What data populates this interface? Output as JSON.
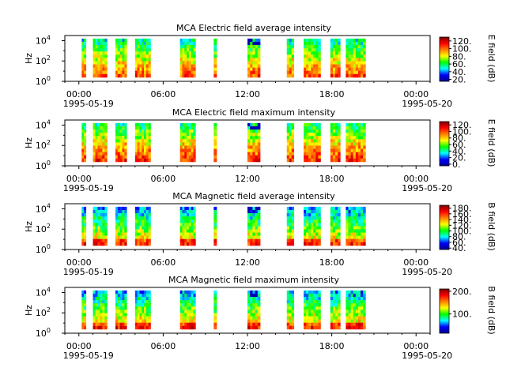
{
  "colors": {
    "colormap": [
      "#00008f",
      "#0000ff",
      "#00ffff",
      "#00ff00",
      "#ffff00",
      "#ff8000",
      "#ff0000",
      "#800000"
    ],
    "axis": "#000000",
    "background": "#ffffff"
  },
  "chart_data": [
    {
      "type": "heatmap",
      "title": "MCA  Electric field average intensity",
      "ylabel": "Hz",
      "ylim_exp": [
        0,
        4.5
      ],
      "yticks": [
        {
          "exp": 0,
          "base": "10",
          "sup": "0"
        },
        {
          "exp": 2,
          "base": "10",
          "sup": "2"
        },
        {
          "exp": 4,
          "base": "10",
          "sup": "4"
        }
      ],
      "xticks": [
        {
          "t": 0,
          "label": "00:00"
        },
        {
          "t": 6,
          "label": "06:00"
        },
        {
          "t": 12,
          "label": "12:00"
        },
        {
          "t": 18,
          "label": "18:00"
        },
        {
          "t": 24,
          "label": "00:00"
        }
      ],
      "xdates": {
        "start": "1995-05-19",
        "end": "1995-05-20"
      },
      "colorbar_label": "E field (dB)",
      "colorbar_range": [
        15,
        130
      ],
      "colorbar_ticks": [
        "20.",
        "40.",
        "60.",
        "80.",
        "100.",
        "120."
      ],
      "colorbar_tick_values": [
        20,
        40,
        60,
        80,
        100,
        120
      ],
      "base_level": 0.5
    },
    {
      "type": "heatmap",
      "title": "MCA  Electric field maximum intensity",
      "ylabel": "Hz",
      "ylim_exp": [
        0,
        4.5
      ],
      "yticks": [
        {
          "exp": 0,
          "base": "10",
          "sup": "0"
        },
        {
          "exp": 2,
          "base": "10",
          "sup": "2"
        },
        {
          "exp": 4,
          "base": "10",
          "sup": "4"
        }
      ],
      "xticks": [
        {
          "t": 0,
          "label": "00:00"
        },
        {
          "t": 6,
          "label": "06:00"
        },
        {
          "t": 12,
          "label": "12:00"
        },
        {
          "t": 18,
          "label": "18:00"
        },
        {
          "t": 24,
          "label": "00:00"
        }
      ],
      "xdates": {
        "start": "1995-05-19",
        "end": "1995-05-20"
      },
      "colorbar_label": "E field (dB)",
      "colorbar_range": [
        -5,
        130
      ],
      "colorbar_ticks": [
        "0.",
        "20.",
        "40.",
        "60.",
        "80.",
        "100.",
        "120."
      ],
      "colorbar_tick_values": [
        0,
        20,
        40,
        60,
        80,
        100,
        120
      ],
      "base_level": 0.55
    },
    {
      "type": "heatmap",
      "title": "MCA  Magnetic field average intensity",
      "ylabel": "Hz",
      "ylim_exp": [
        0,
        4.5
      ],
      "yticks": [
        {
          "exp": 0,
          "base": "10",
          "sup": "0"
        },
        {
          "exp": 2,
          "base": "10",
          "sup": "2"
        },
        {
          "exp": 4,
          "base": "10",
          "sup": "4"
        }
      ],
      "xticks": [
        {
          "t": 0,
          "label": "00:00"
        },
        {
          "t": 6,
          "label": "06:00"
        },
        {
          "t": 12,
          "label": "12:00"
        },
        {
          "t": 18,
          "label": "18:00"
        },
        {
          "t": 24,
          "label": "00:00"
        }
      ],
      "xdates": {
        "start": "1995-05-19",
        "end": "1995-05-20"
      },
      "colorbar_label": "B field (dB)",
      "colorbar_range": [
        35,
        190
      ],
      "colorbar_ticks": [
        "40.",
        "60.",
        "80.",
        "100.",
        "120.",
        "140.",
        "160.",
        "180."
      ],
      "colorbar_tick_values": [
        40,
        60,
        80,
        100,
        120,
        140,
        160,
        180
      ],
      "base_level": 0.4
    },
    {
      "type": "heatmap",
      "title": "MCA  Magnetic field maximum intensity",
      "ylabel": "Hz",
      "ylim_exp": [
        0,
        4.5
      ],
      "yticks": [
        {
          "exp": 0,
          "base": "10",
          "sup": "0"
        },
        {
          "exp": 2,
          "base": "10",
          "sup": "2"
        },
        {
          "exp": 4,
          "base": "10",
          "sup": "4"
        }
      ],
      "xticks": [
        {
          "t": 0,
          "label": "00:00"
        },
        {
          "t": 6,
          "label": "06:00"
        },
        {
          "t": 12,
          "label": "12:00"
        },
        {
          "t": 18,
          "label": "18:00"
        },
        {
          "t": 24,
          "label": "00:00"
        }
      ],
      "xdates": {
        "start": "1995-05-19",
        "end": "1995-05-20"
      },
      "colorbar_label": "B field (dB)",
      "colorbar_range": [
        15,
        210
      ],
      "colorbar_ticks": [
        "100.",
        "200."
      ],
      "colorbar_tick_values": [
        100,
        200
      ],
      "base_level": 0.42
    }
  ],
  "data_coverage": {
    "x_unit": "hours after 1995-05-19 00:00",
    "ranges": [
      [
        0.2,
        0.5
      ],
      [
        1.0,
        2.0
      ],
      [
        2.6,
        3.4
      ],
      [
        4.0,
        5.1
      ],
      [
        7.2,
        8.3
      ],
      [
        9.6,
        9.8
      ],
      [
        12.0,
        12.9
      ],
      [
        14.8,
        15.3
      ],
      [
        16.0,
        17.2
      ],
      [
        17.9,
        18.6
      ],
      [
        19.0,
        20.4
      ]
    ],
    "y_range_exp": [
      0.4,
      4.2
    ]
  }
}
